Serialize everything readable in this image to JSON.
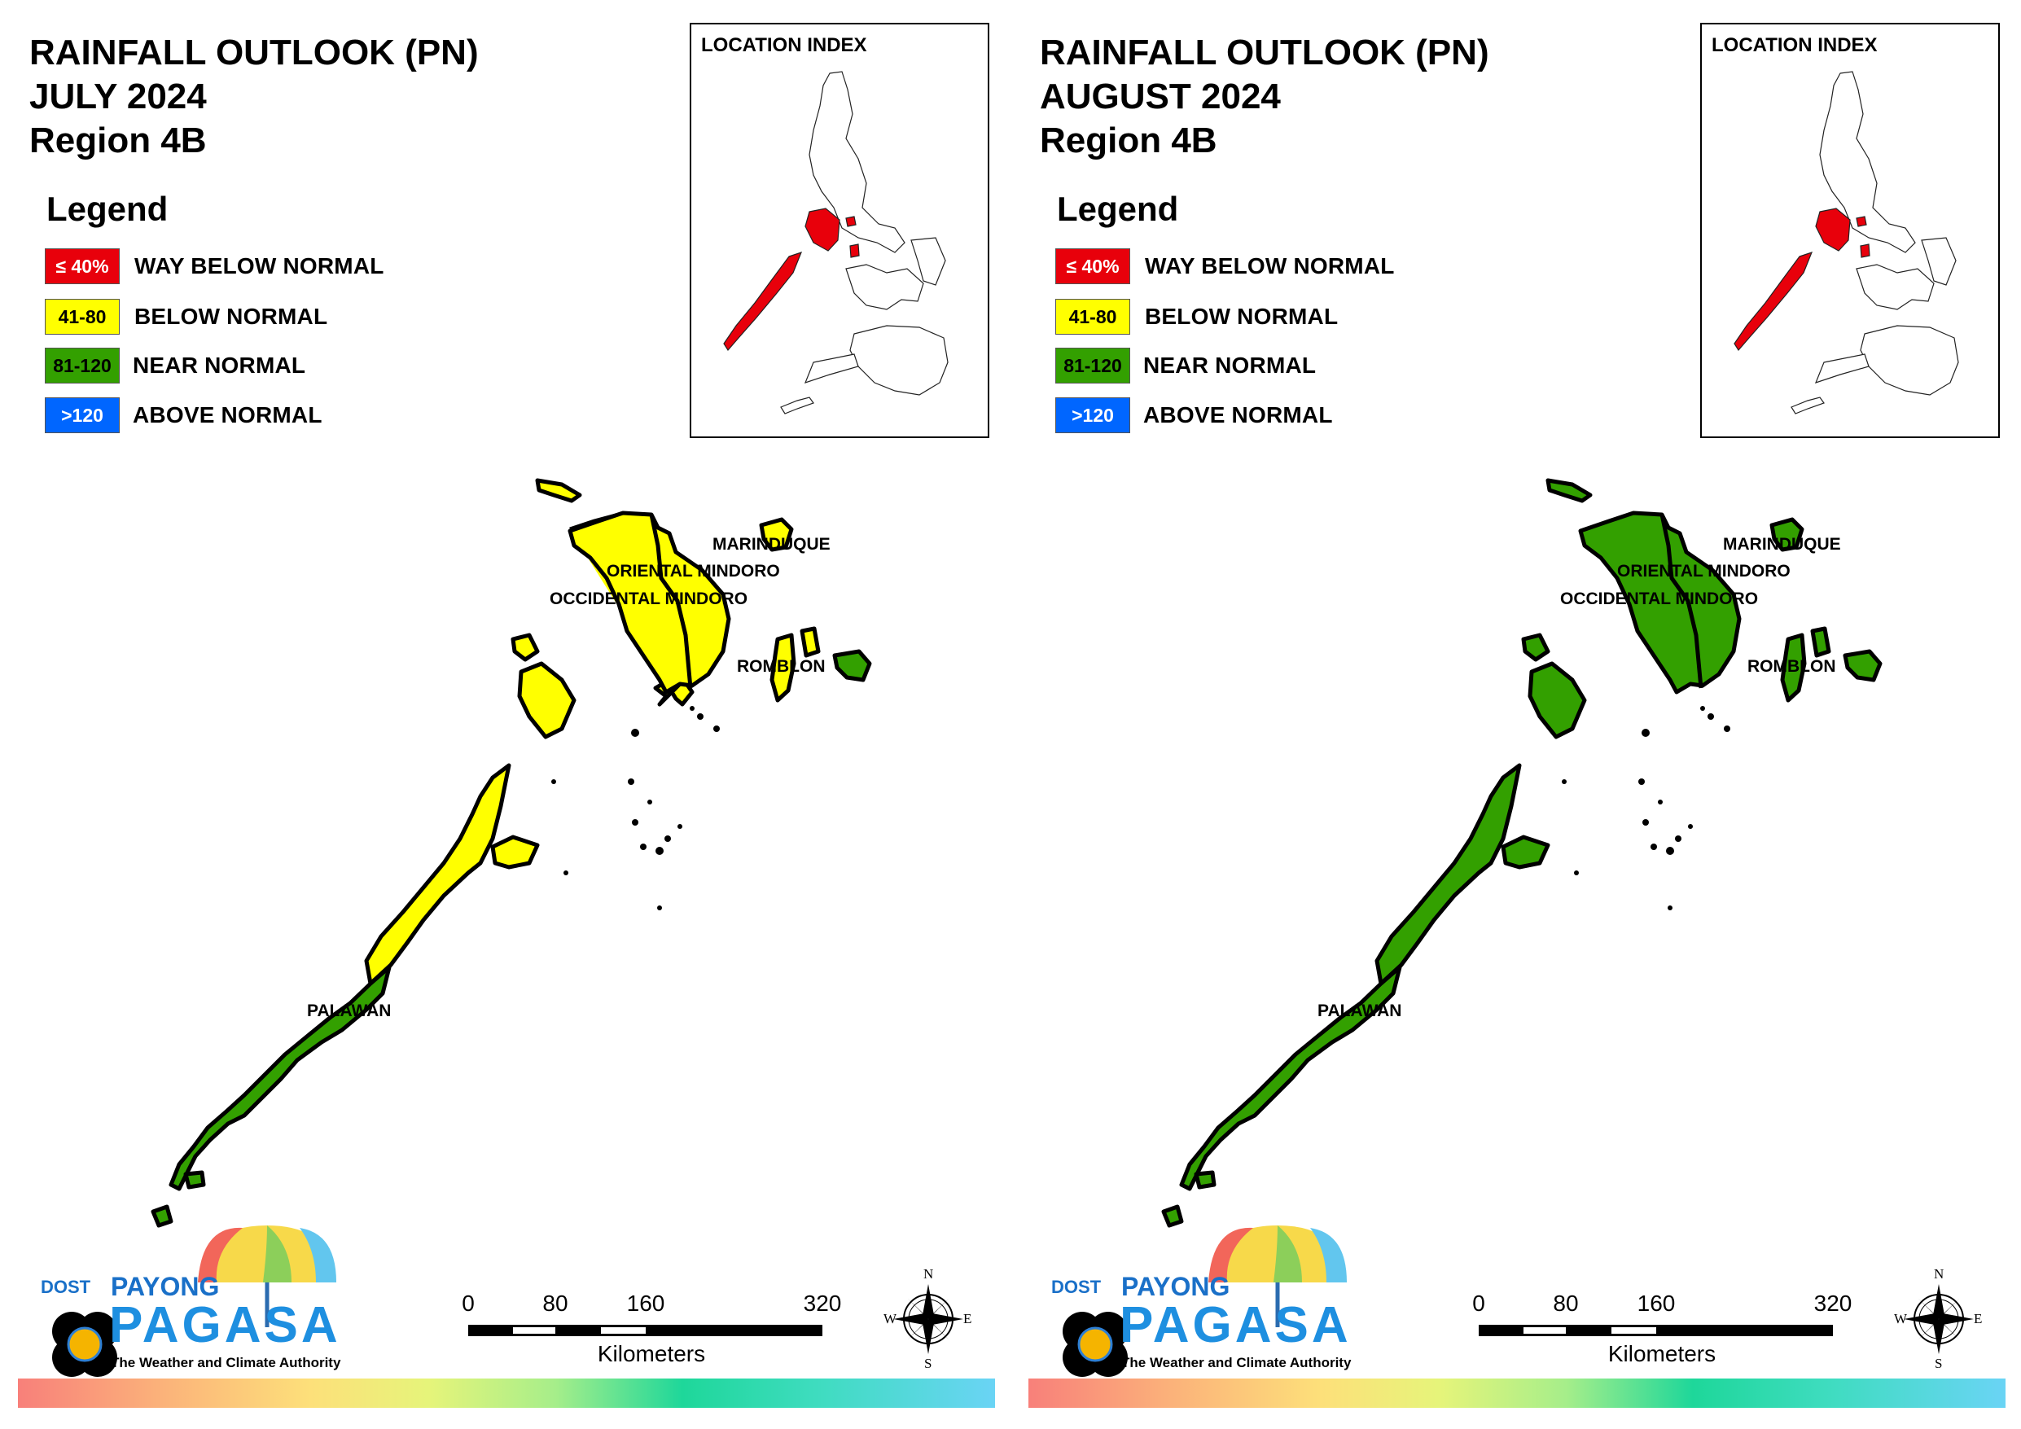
{
  "panels": [
    {
      "title_line1": "RAINFALL OUTLOOK (PN)",
      "title_line2": "JULY 2024",
      "title_line3": "Region 4B",
      "provinces": {
        "marinduque": {
          "label": "MARINDUQUE",
          "category": "below-normal",
          "fill": "#ffff00"
        },
        "oriental_mindoro": {
          "label": "ORIENTAL MINDORO",
          "category": "below-normal",
          "fill": "#ffff00"
        },
        "occidental_mindoro": {
          "label": "OCCIDENTAL MINDORO",
          "category": "below-normal",
          "fill": "#ffff00"
        },
        "romblon": {
          "label": "ROMBLON",
          "category": "below-normal with near-normal east",
          "fill": "#ffff00",
          "fill_secondary": "#33a000"
        },
        "palawan": {
          "label": "PALAWAN",
          "category": "below-normal north, near-normal south",
          "fill": "#33a000",
          "fill_secondary": "#ffff00"
        }
      }
    },
    {
      "title_line1": "RAINFALL OUTLOOK (PN)",
      "title_line2": "AUGUST 2024",
      "title_line3": "Region 4B",
      "provinces": {
        "marinduque": {
          "label": "MARINDUQUE",
          "category": "near-normal",
          "fill": "#33a000"
        },
        "oriental_mindoro": {
          "label": "ORIENTAL MINDORO",
          "category": "near-normal",
          "fill": "#33a000"
        },
        "occidental_mindoro": {
          "label": "OCCIDENTAL MINDORO",
          "category": "near-normal",
          "fill": "#33a000"
        },
        "romblon": {
          "label": "ROMBLON",
          "category": "near-normal",
          "fill": "#33a000",
          "fill_secondary": "#33a000"
        },
        "palawan": {
          "label": "PALAWAN",
          "category": "near-normal",
          "fill": "#33a000",
          "fill_secondary": "#33a000"
        }
      }
    }
  ],
  "legend": {
    "heading": "Legend",
    "items": [
      {
        "swatch": "≤ 40%",
        "label": "WAY BELOW NORMAL",
        "color": "#e8000b",
        "text_color": "#ffffff"
      },
      {
        "swatch": "41-80",
        "label": "BELOW NORMAL",
        "color": "#ffff00",
        "text_color": "#000000"
      },
      {
        "swatch": "81-120",
        "label": "NEAR NORMAL",
        "color": "#33a000",
        "text_color": "#000000"
      },
      {
        "swatch": ">120",
        "label": "ABOVE NORMAL",
        "color": "#0066ff",
        "text_color": "#ffffff"
      }
    ]
  },
  "location_index": {
    "title": "LOCATION INDEX",
    "highlight_color": "#e8000b"
  },
  "scale": {
    "ticks": [
      "0",
      "80",
      "160",
      "320"
    ],
    "unit": "Kilometers"
  },
  "compass": {
    "n": "N",
    "s": "S",
    "e": "E",
    "w": "W"
  },
  "logo": {
    "dost": "DOST",
    "payong": "PAYONG",
    "pagasa": "PAGASA",
    "tagline": "The Weather and Climate Authority"
  }
}
